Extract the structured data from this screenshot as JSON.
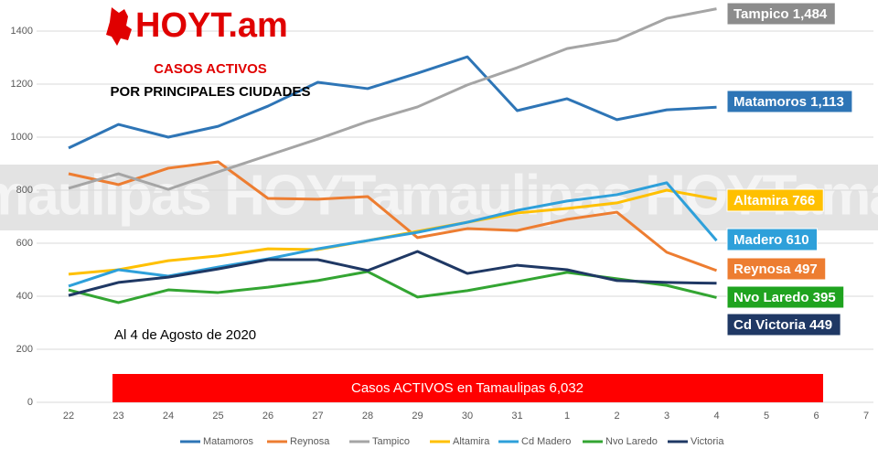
{
  "chart_data": {
    "type": "line",
    "logo": "HOYT.am",
    "title": "CASOS ACTIVOS",
    "subtitle": "POR PRINCIPALES CIUDADES",
    "date_note": "Al 4 de Agosto de 2020",
    "total_note": "Casos ACTIVOS en Tamaulipas 6,032",
    "watermark": "maulipas HOYTamaulipas HOYTama",
    "categories": [
      "22",
      "23",
      "24",
      "25",
      "26",
      "27",
      "28",
      "29",
      "30",
      "31",
      "1",
      "2",
      "3",
      "4",
      "5",
      "6",
      "7"
    ],
    "ylim": [
      0,
      1500
    ],
    "yticks": [
      0,
      200,
      400,
      600,
      800,
      1000,
      1200,
      1400
    ],
    "grid": true,
    "legend": "bottom",
    "series": [
      {
        "name": "Matamoros",
        "color": "#2e75b6",
        "label": "Matamoros 1,113",
        "label_color": "#2e75b6",
        "values": [
          959,
          1048,
          1000,
          1041,
          1117,
          1207,
          1183,
          1241,
          1303,
          1100,
          1145,
          1066,
          1103,
          1113,
          null,
          null,
          null
        ]
      },
      {
        "name": "Reynosa",
        "color": "#ed7d31",
        "label": "Reynosa 497",
        "label_color": "#ed7d31",
        "values": [
          862,
          821,
          883,
          907,
          769,
          766,
          776,
          621,
          655,
          648,
          690,
          717,
          566,
          497,
          null,
          null,
          null
        ]
      },
      {
        "name": "Tampico",
        "color": "#a5a5a5",
        "label": "Tampico 1,484",
        "label_color": "#8c8c8c",
        "values": [
          807,
          862,
          803,
          869,
          931,
          993,
          1059,
          1114,
          1197,
          1262,
          1334,
          1366,
          1448,
          1484,
          null,
          null,
          null
        ]
      },
      {
        "name": "Altamira",
        "color": "#ffc000",
        "label": "Altamira 766",
        "label_color": "#ffc000",
        "values": [
          483,
          500,
          534,
          552,
          579,
          576,
          610,
          645,
          679,
          714,
          731,
          752,
          800,
          766,
          null,
          null,
          null
        ]
      },
      {
        "name": "Cd Madero",
        "color": "#2ea0da",
        "label": "Madero 610",
        "label_color": "#2ea0da",
        "values": [
          438,
          500,
          476,
          510,
          541,
          579,
          610,
          641,
          679,
          724,
          759,
          783,
          828,
          610,
          null,
          null,
          null
        ]
      },
      {
        "name": "Nvo Laredo",
        "color": "#33a532",
        "label": "Nvo Laredo 395",
        "label_color": "#1fa31f",
        "values": [
          424,
          376,
          424,
          414,
          434,
          459,
          493,
          397,
          421,
          455,
          490,
          466,
          441,
          395,
          null,
          null,
          null
        ]
      },
      {
        "name": "Victoria",
        "color": "#1f3864",
        "label": "Cd Victoria 449",
        "label_color": "#1f3864",
        "values": [
          403,
          452,
          472,
          503,
          538,
          538,
          497,
          569,
          486,
          517,
          500,
          459,
          452,
          449,
          null,
          null,
          null
        ]
      }
    ]
  }
}
